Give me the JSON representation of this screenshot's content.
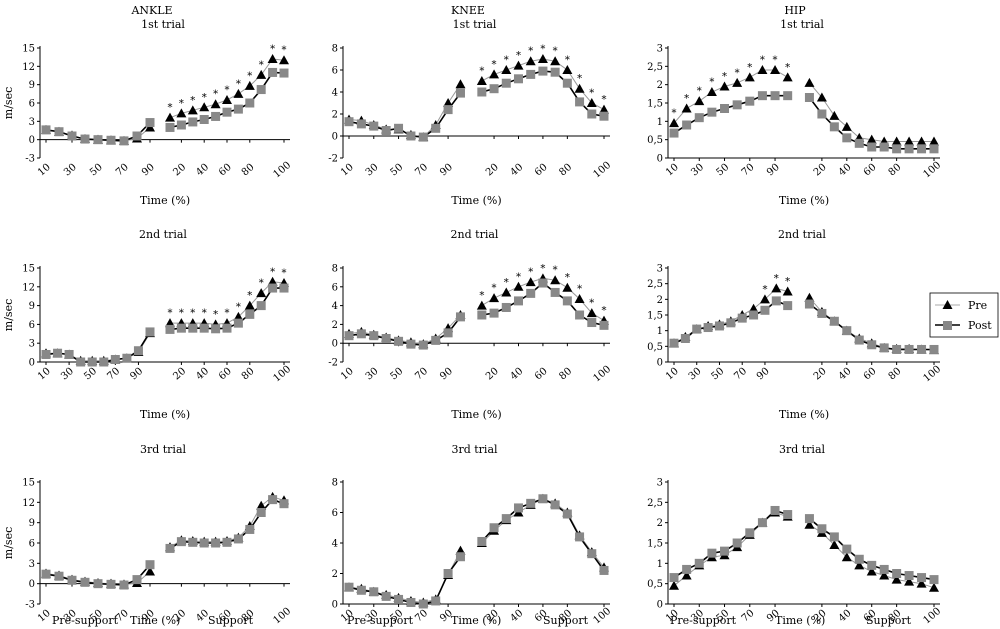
{
  "columns": [
    "ANKLE",
    "KNEE",
    "HIP"
  ],
  "legend": [
    {
      "name": "Pre",
      "marker": "triangle",
      "color": "#000000"
    },
    {
      "name": "Post",
      "marker": "square",
      "color": "#888888"
    }
  ],
  "bottom_labels": {
    "pre_support": "Pre-support",
    "support": "Support"
  },
  "y_unit_label": "m/sec",
  "x_axis_label": "Time (%)",
  "chart_data": [
    {
      "type": "line",
      "joint": "ANKLE",
      "title": "1st trial",
      "ylabel": "m/sec",
      "xlabel": "Time (%)",
      "ylim": [
        -3,
        15
      ],
      "yticks": [
        -3,
        0,
        3,
        6,
        9,
        12,
        15
      ],
      "x_ticks": [
        "10",
        "30",
        "50",
        "70",
        "90",
        "20",
        "40",
        "60",
        "80",
        "100"
      ],
      "series": [
        {
          "name": "Pre",
          "pre_support": [
            1.6,
            1.3,
            0.7,
            0.1,
            0.0,
            -0.1,
            -0.2,
            0.2,
            2.0
          ],
          "support": [
            3.6,
            4.3,
            4.8,
            5.3,
            5.8,
            6.5,
            7.5,
            8.8,
            10.6,
            13.2,
            13.0
          ]
        },
        {
          "name": "Post",
          "pre_support": [
            1.6,
            1.3,
            0.6,
            0.1,
            0.0,
            -0.1,
            -0.2,
            0.6,
            2.8
          ],
          "support": [
            2.0,
            2.4,
            2.9,
            3.3,
            3.8,
            4.5,
            5.0,
            6.0,
            8.2,
            11.0,
            10.9
          ]
        }
      ],
      "significant_points": [
        0,
        1,
        2,
        3,
        4,
        5,
        6,
        7,
        8,
        9,
        10
      ]
    },
    {
      "type": "line",
      "joint": "KNEE",
      "title": "1st trial",
      "xlabel": "Time (%)",
      "ylim": [
        -2,
        8
      ],
      "yticks": [
        -2,
        0,
        2,
        4,
        6,
        8
      ],
      "x_ticks": [
        "10",
        "30",
        "50",
        "70",
        "90",
        "20",
        "40",
        "60",
        "80",
        "100"
      ],
      "series": [
        {
          "name": "Pre",
          "pre_support": [
            1.5,
            1.4,
            1.0,
            0.6,
            0.6,
            0.1,
            -0.1,
            1.0,
            3.0,
            4.7
          ],
          "support": [
            5.0,
            5.6,
            6.0,
            6.4,
            6.8,
            7.0,
            6.8,
            6.0,
            4.3,
            3.0,
            2.4
          ]
        },
        {
          "name": "Post",
          "pre_support": [
            1.3,
            1.1,
            0.9,
            0.5,
            0.7,
            0.0,
            -0.1,
            0.7,
            2.4,
            3.9
          ],
          "support": [
            4.0,
            4.3,
            4.8,
            5.2,
            5.6,
            5.9,
            5.8,
            4.8,
            3.1,
            2.0,
            1.8
          ]
        }
      ],
      "significant_points": [
        0,
        1,
        2,
        3,
        4,
        5,
        6,
        7,
        8,
        9,
        10
      ]
    },
    {
      "type": "line",
      "joint": "HIP",
      "title": "1st trial",
      "xlabel": "Time (%)",
      "ylim": [
        0,
        3
      ],
      "yticks": [
        "0",
        "0,5",
        "1",
        "1,5",
        "2",
        "2,5",
        "3"
      ],
      "x_ticks": [
        "10",
        "30",
        "50",
        "70",
        "90",
        "20",
        "40",
        "60",
        "80",
        "100"
      ],
      "series": [
        {
          "name": "Pre",
          "pre_support": [
            0.95,
            1.35,
            1.55,
            1.8,
            1.95,
            2.05,
            2.2,
            2.4,
            2.4,
            2.2
          ],
          "support": [
            2.05,
            1.65,
            1.15,
            0.85,
            0.55,
            0.5,
            0.45,
            0.45,
            0.45,
            0.45,
            0.45
          ]
        },
        {
          "name": "Post",
          "pre_support": [
            0.68,
            0.9,
            1.1,
            1.25,
            1.35,
            1.45,
            1.55,
            1.7,
            1.7,
            1.7
          ],
          "support": [
            1.65,
            1.2,
            0.85,
            0.55,
            0.4,
            0.3,
            0.3,
            0.25,
            0.25,
            0.25,
            0.25
          ]
        }
      ],
      "significant_points": [
        0,
        1,
        2,
        3,
        4,
        5,
        6,
        7,
        8,
        9
      ]
    },
    {
      "type": "line",
      "joint": "ANKLE",
      "title": "2nd trial",
      "ylabel": "m/sec",
      "xlabel": "Time (%)",
      "ylim": [
        0,
        15
      ],
      "yticks": [
        0,
        3,
        6,
        9,
        12,
        15
      ],
      "x_ticks": [
        "10",
        "30",
        "50",
        "70",
        "90",
        "20",
        "40",
        "60",
        "80",
        "100"
      ],
      "series": [
        {
          "name": "Pre",
          "pre_support": [
            1.4,
            1.4,
            1.2,
            0.2,
            0.2,
            0.2,
            0.4,
            0.6,
            1.6,
            4.6
          ],
          "support": [
            6.2,
            6.2,
            6.2,
            6.2,
            6.0,
            6.2,
            7.2,
            9.0,
            11.0,
            12.8,
            12.6
          ]
        },
        {
          "name": "Post",
          "pre_support": [
            1.2,
            1.4,
            1.2,
            0.0,
            0.0,
            0.0,
            0.4,
            0.6,
            1.8,
            4.8
          ],
          "support": [
            5.2,
            5.4,
            5.4,
            5.4,
            5.3,
            5.4,
            6.2,
            7.6,
            9.0,
            11.8,
            11.8
          ]
        }
      ],
      "significant_points": [
        0,
        1,
        2,
        3,
        4,
        5,
        6,
        7,
        8,
        9,
        10
      ]
    },
    {
      "type": "line",
      "joint": "KNEE",
      "title": "2nd trial",
      "xlabel": "Time (%)",
      "ylim": [
        -2,
        8
      ],
      "yticks": [
        -2,
        0,
        2,
        4,
        6,
        8
      ],
      "x_ticks": [
        "10",
        "30",
        "50",
        "70",
        "90",
        "20",
        "40",
        "60",
        "80",
        "100"
      ],
      "series": [
        {
          "name": "Pre",
          "pre_support": [
            1.0,
            1.2,
            0.9,
            0.6,
            0.3,
            0.1,
            -0.1,
            0.5,
            1.6,
            3.0
          ],
          "support": [
            4.0,
            4.8,
            5.4,
            6.0,
            6.5,
            6.9,
            6.7,
            5.9,
            4.7,
            3.2,
            2.4
          ]
        },
        {
          "name": "Post",
          "pre_support": [
            0.8,
            1.0,
            0.8,
            0.5,
            0.2,
            -0.1,
            -0.2,
            0.3,
            1.1,
            2.8
          ],
          "support": [
            3.0,
            3.2,
            3.8,
            4.5,
            5.3,
            6.4,
            5.4,
            4.5,
            3.0,
            2.2,
            1.9
          ]
        }
      ],
      "significant_points": [
        0,
        1,
        2,
        3,
        4,
        5,
        6,
        7,
        8,
        9,
        10
      ]
    },
    {
      "type": "line",
      "joint": "HIP",
      "title": "2nd trial",
      "xlabel": "Time (%)",
      "ylim": [
        0,
        3
      ],
      "yticks": [
        "0",
        "0,5",
        "1",
        "1,5",
        "2",
        "2,5",
        "3"
      ],
      "x_ticks": [
        "10",
        "30",
        "50",
        "70",
        "90",
        "20",
        "40",
        "60",
        "80",
        "100"
      ],
      "series": [
        {
          "name": "Pre",
          "pre_support": [
            0.6,
            0.8,
            1.05,
            1.15,
            1.2,
            1.3,
            1.5,
            1.7,
            2.0,
            2.35,
            2.25
          ],
          "support": [
            2.05,
            1.6,
            1.3,
            1.0,
            0.75,
            0.6,
            0.45,
            0.42,
            0.42,
            0.4,
            0.38
          ]
        },
        {
          "name": "Post",
          "pre_support": [
            0.6,
            0.75,
            1.05,
            1.1,
            1.15,
            1.25,
            1.4,
            1.5,
            1.65,
            1.95,
            1.8
          ],
          "support": [
            1.85,
            1.55,
            1.3,
            1.0,
            0.7,
            0.55,
            0.45,
            0.4,
            0.4,
            0.4,
            0.4
          ]
        }
      ],
      "significant_points": [
        8,
        9,
        10
      ]
    },
    {
      "type": "line",
      "joint": "ANKLE",
      "title": "3rd trial",
      "ylabel": "m/sec",
      "xlabel": "Time (%)",
      "ylim": [
        -3,
        15
      ],
      "yticks": [
        -3,
        0,
        3,
        6,
        9,
        12,
        15
      ],
      "x_ticks": [
        "10",
        "30",
        "50",
        "70",
        "90",
        "20",
        "40",
        "60",
        "80",
        "100"
      ],
      "series": [
        {
          "name": "Pre",
          "pre_support": [
            1.5,
            1.2,
            0.6,
            0.3,
            0.1,
            0.0,
            -0.1,
            0.1,
            1.8
          ],
          "support": [
            5.4,
            6.4,
            6.3,
            6.2,
            6.2,
            6.3,
            6.8,
            8.5,
            11.5,
            12.8,
            12.3
          ]
        },
        {
          "name": "Post",
          "pre_support": [
            1.4,
            1.1,
            0.5,
            0.2,
            0.0,
            -0.1,
            -0.2,
            0.6,
            2.8
          ],
          "support": [
            5.2,
            6.2,
            6.1,
            6.0,
            6.0,
            6.1,
            6.6,
            8.0,
            10.5,
            12.4,
            11.8
          ]
        }
      ],
      "significant_points": []
    },
    {
      "type": "line",
      "joint": "KNEE",
      "title": "3rd trial",
      "xlabel": "Time (%)",
      "ylim": [
        0,
        8
      ],
      "yticks": [
        0,
        2,
        4,
        6,
        8
      ],
      "x_ticks": [
        "10",
        "30",
        "50",
        "70",
        "90",
        "20",
        "40",
        "60",
        "80",
        "100"
      ],
      "series": [
        {
          "name": "Pre",
          "pre_support": [
            1.1,
            1.0,
            0.8,
            0.6,
            0.4,
            0.2,
            0.1,
            0.3,
            1.9,
            3.5
          ],
          "support": [
            4.0,
            4.8,
            5.5,
            6.0,
            6.5,
            6.9,
            6.6,
            6.0,
            4.5,
            3.4,
            2.4
          ]
        },
        {
          "name": "Post",
          "pre_support": [
            1.1,
            0.9,
            0.8,
            0.5,
            0.3,
            0.1,
            0.0,
            0.2,
            2.0,
            3.1
          ],
          "support": [
            4.1,
            5.0,
            5.6,
            6.3,
            6.6,
            6.9,
            6.5,
            5.9,
            4.4,
            3.3,
            2.2
          ]
        }
      ],
      "significant_points": []
    },
    {
      "type": "line",
      "joint": "HIP",
      "title": "3rd trial",
      "xlabel": "Time (%)",
      "ylim": [
        0,
        3
      ],
      "yticks": [
        "0",
        "0,5",
        "1",
        "1,5",
        "2",
        "2,5",
        "3"
      ],
      "x_ticks": [
        "10",
        "30",
        "50",
        "70",
        "90",
        "20",
        "40",
        "60",
        "80",
        "100"
      ],
      "series": [
        {
          "name": "Pre",
          "pre_support": [
            0.45,
            0.7,
            0.95,
            1.15,
            1.2,
            1.4,
            1.7,
            2.0,
            2.25,
            2.15
          ],
          "support": [
            1.95,
            1.75,
            1.45,
            1.15,
            0.95,
            0.8,
            0.7,
            0.6,
            0.55,
            0.5,
            0.4
          ]
        },
        {
          "name": "Post",
          "pre_support": [
            0.65,
            0.85,
            1.0,
            1.25,
            1.3,
            1.5,
            1.75,
            2.0,
            2.3,
            2.2
          ],
          "support": [
            2.1,
            1.85,
            1.65,
            1.35,
            1.1,
            0.95,
            0.85,
            0.75,
            0.7,
            0.65,
            0.6
          ]
        }
      ],
      "significant_points": []
    }
  ]
}
